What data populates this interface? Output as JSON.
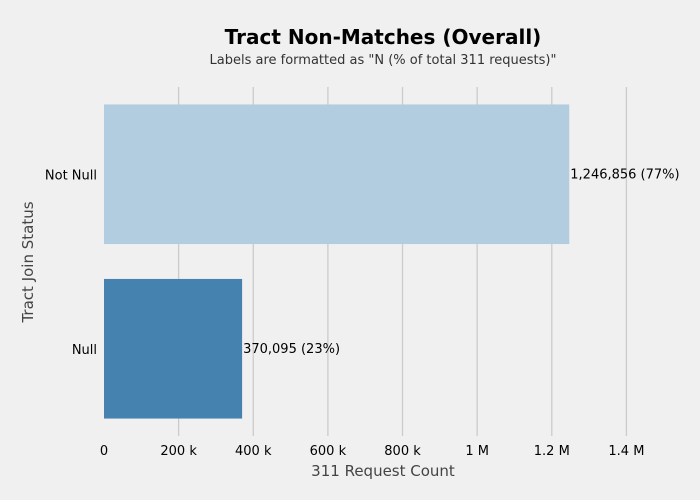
{
  "chart_data": {
    "type": "bar",
    "orientation": "horizontal",
    "title": "Tract Non-Matches (Overall)",
    "subtitle": "Labels are formatted as \"N (% of total 311 requests)\"",
    "xlabel": "311 Request Count",
    "ylabel": "Tract Join Status",
    "categories": [
      "Not Null",
      "Null"
    ],
    "values": [
      1246856,
      370095
    ],
    "data_labels": [
      "1,246,856 (77%)",
      "370,095 (23%)"
    ],
    "colors": [
      "#b3cde0",
      "#4682b0"
    ],
    "xlim": [
      0,
      1490000
    ],
    "xticks": [
      {
        "value": 0,
        "label": "0"
      },
      {
        "value": 200000,
        "label": "200 k"
      },
      {
        "value": 400000,
        "label": "400 k"
      },
      {
        "value": 600000,
        "label": "600 k"
      },
      {
        "value": 800000,
        "label": "800 k"
      },
      {
        "value": 1000000,
        "label": "1 M"
      },
      {
        "value": 1200000,
        "label": "1.2 M"
      },
      {
        "value": 1400000,
        "label": "1.4 M"
      }
    ],
    "grid": "vertical",
    "background": "#f0f0f0",
    "grid_color": "#cbcbcb"
  }
}
